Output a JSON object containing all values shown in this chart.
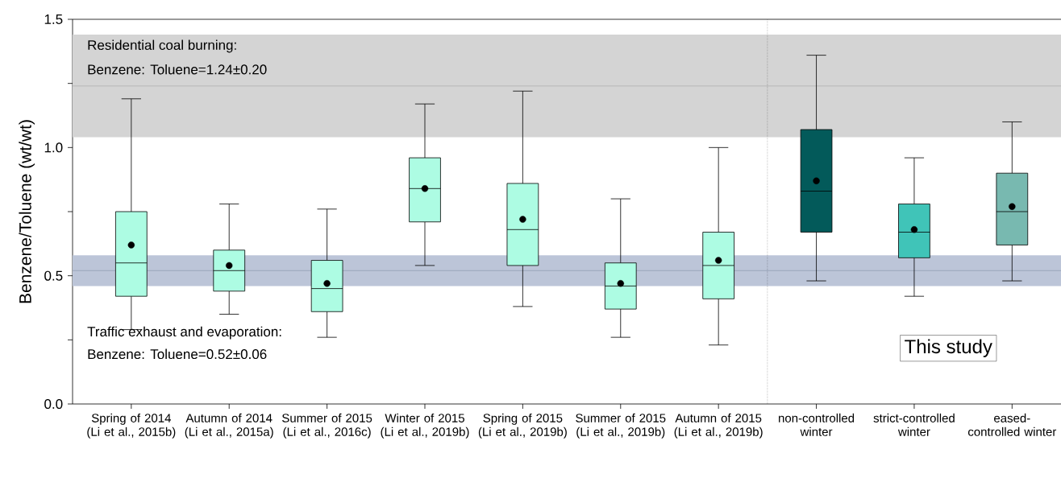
{
  "chart_data": {
    "type": "box",
    "ylabel": "Benzene/Toluene (wt/wt)",
    "categories": [
      "Spring of 2014 (Li et al., 2015b)",
      "Autumn of 2014 (Li et al., 2015a)",
      "Summer of 2015 (Li et al., 2016c)",
      "Winter of 2015 (Li et al., 2019b)",
      "Spring of 2015 (Li et al., 2019b)",
      "Summer of 2015 (Li et al., 2019b)",
      "Autumn of 2015 (Li et al., 2019b)",
      "non-controlled winter",
      "strict-controlled winter",
      "eased-controlled winter"
    ],
    "boxes": [
      {
        "low": 0.29,
        "q1": 0.42,
        "median": 0.55,
        "q3": 0.75,
        "high": 1.19,
        "mean": 0.62
      },
      {
        "low": 0.35,
        "q1": 0.44,
        "median": 0.52,
        "q3": 0.6,
        "high": 0.78,
        "mean": 0.54
      },
      {
        "low": 0.26,
        "q1": 0.36,
        "median": 0.45,
        "q3": 0.56,
        "high": 0.76,
        "mean": 0.47
      },
      {
        "low": 0.54,
        "q1": 0.71,
        "median": 0.84,
        "q3": 0.96,
        "high": 1.17,
        "mean": 0.84
      },
      {
        "low": 0.38,
        "q1": 0.54,
        "median": 0.68,
        "q3": 0.86,
        "high": 1.22,
        "mean": 0.72
      },
      {
        "low": 0.26,
        "q1": 0.37,
        "median": 0.46,
        "q3": 0.55,
        "high": 0.8,
        "mean": 0.47
      },
      {
        "low": 0.23,
        "q1": 0.41,
        "median": 0.54,
        "q3": 0.67,
        "high": 1.0,
        "mean": 0.56
      },
      {
        "low": 0.48,
        "q1": 0.67,
        "median": 0.83,
        "q3": 1.07,
        "high": 1.36,
        "mean": 0.87
      },
      {
        "low": 0.42,
        "q1": 0.57,
        "median": 0.67,
        "q3": 0.78,
        "high": 0.96,
        "mean": 0.68
      },
      {
        "low": 0.48,
        "q1": 0.62,
        "median": 0.75,
        "q3": 0.9,
        "high": 1.1,
        "mean": 0.77
      }
    ],
    "colors": [
      "#adfce3",
      "#adfce3",
      "#adfce3",
      "#adfce3",
      "#adfce3",
      "#adfce3",
      "#adfce3",
      "#035a5a",
      "#40c4b8",
      "#78b9b0"
    ],
    "ylim": [
      0,
      1.5
    ],
    "yticks": [
      {
        "value": 0,
        "label": "0.0"
      },
      {
        "value": 0.25,
        "label": null
      },
      {
        "value": 0.5,
        "label": "0.5"
      },
      {
        "value": 0.75,
        "label": null
      },
      {
        "value": 1.0,
        "label": "1.0"
      },
      {
        "value": 1.25,
        "label": null
      },
      {
        "value": 1.5,
        "label": "1.5"
      }
    ],
    "bands": [
      {
        "axis": "y",
        "from": 1.04,
        "to": 1.44,
        "color": "#d4d4d4"
      },
      {
        "axis": "y",
        "from": 0.46,
        "to": 0.58,
        "color": "#bcc5d8"
      }
    ],
    "ref_lines": [
      {
        "axis": "y",
        "value": 1.24,
        "color": "#8a8a8a"
      },
      {
        "axis": "y",
        "value": 0.52,
        "color": "#6d7a92"
      }
    ],
    "annotations": [
      "Residential coal burning:",
      "Benzene: Toluene=1.24±0.20",
      "Traffic exhaust and evaporation:",
      "Benzene: Toluene=0.52±0.06",
      "This study"
    ]
  }
}
